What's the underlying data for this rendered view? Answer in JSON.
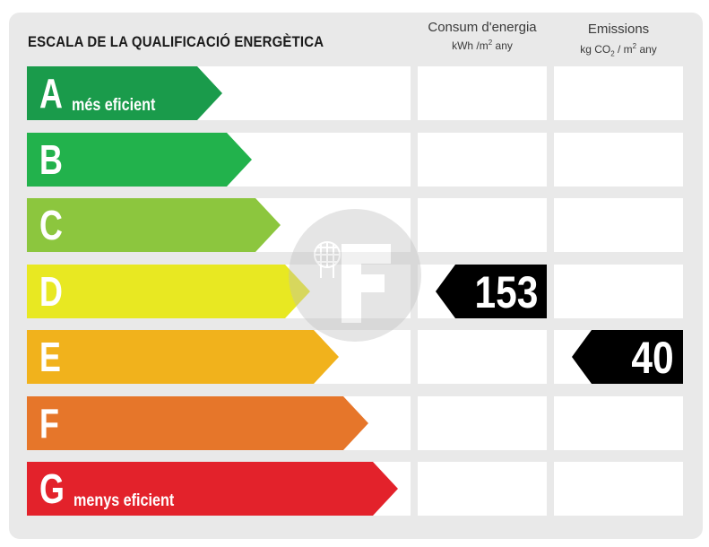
{
  "title": "ESCALA DE LA QUALIFICACIÓ ENERGÈTICA",
  "columns": {
    "energy": {
      "label": "Consum d'energia",
      "unit_prefix": "kWh /m",
      "unit_sup": "2",
      "unit_suffix": " any"
    },
    "emissions": {
      "label": "Emissions",
      "unit_prefix": "kg CO",
      "unit_sub": "2",
      "unit_mid": " / m",
      "unit_sup": "2",
      "unit_suffix": " any"
    }
  },
  "grades": [
    {
      "letter": "A",
      "label": "més eficient",
      "color": "#1a9b4b"
    },
    {
      "letter": "B",
      "label": "",
      "color": "#22b24c"
    },
    {
      "letter": "C",
      "label": "",
      "color": "#8cc63e"
    },
    {
      "letter": "D",
      "label": "",
      "color": "#e8e822"
    },
    {
      "letter": "E",
      "label": "",
      "color": "#f1b21c"
    },
    {
      "letter": "F",
      "label": "",
      "color": "#e6762a"
    },
    {
      "letter": "G",
      "label": "menys eficient",
      "color": "#e3222b"
    }
  ],
  "ratings": {
    "energy": {
      "grade": "D",
      "value": "153"
    },
    "emissions": {
      "grade": "E",
      "value": "40"
    }
  },
  "watermark": {
    "icon": "f-logo-watermark-icon"
  }
}
